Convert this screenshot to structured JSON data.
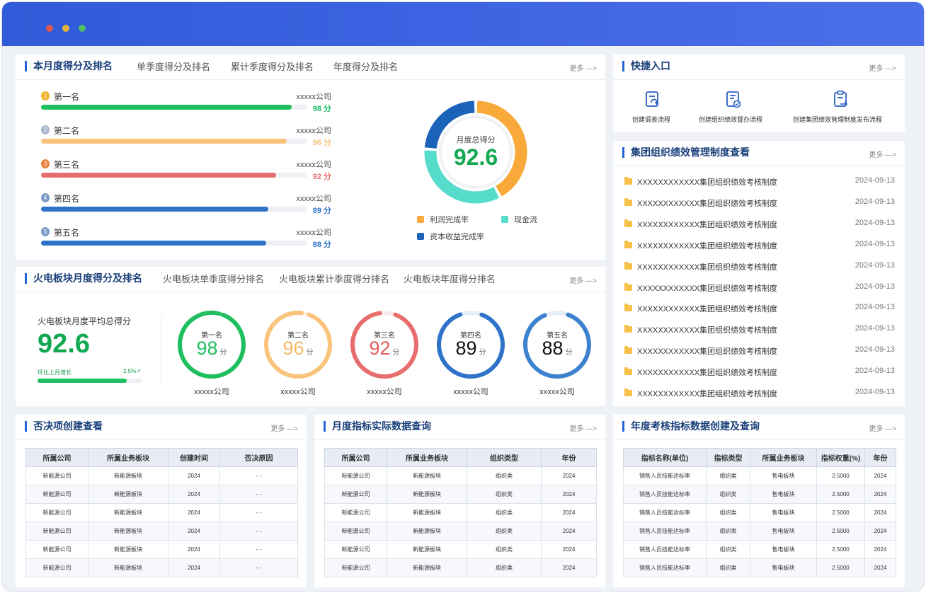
{
  "window": {
    "dots": [
      "#e0594e",
      "#e3b53a",
      "#4fbf6a"
    ]
  },
  "monthly": {
    "title": "本月度得分及排名",
    "tabs": [
      "单季度得分及排名",
      "累计季度得分及排名",
      "年度得分及排名"
    ],
    "more": "更多 —>",
    "ranks": [
      {
        "label": "第一名",
        "company": "xxxxx公司",
        "score": "98 分",
        "value": 98,
        "color": "#1fbf5f",
        "medal_color": "#f2b533"
      },
      {
        "label": "第二名",
        "company": "xxxxx公司",
        "score": "96 分",
        "value": 96,
        "color": "#f9c37b",
        "medal_color": "#a9b7d0"
      },
      {
        "label": "第三名",
        "company": "xxxxx公司",
        "score": "92 分",
        "value": 92,
        "color": "#e86e6e",
        "medal_color": "#e9823f"
      },
      {
        "label": "第四名",
        "company": "xxxxx公司",
        "score": "89 分",
        "value": 89,
        "color": "#2f73c8",
        "medal_color": "#7b9cc7"
      },
      {
        "label": "第五名",
        "company": "xxxxx公司",
        "score": "88 分",
        "value": 88,
        "color": "#2f73c8",
        "medal_color": "#7b9cc7"
      }
    ],
    "donut": {
      "center_label": "月度总得分",
      "center_value": "92.6",
      "legend": [
        {
          "name": "利润完成率",
          "color": "#f8a93a"
        },
        {
          "name": "现金流",
          "color": "#56dccb"
        },
        {
          "name": "资本收益完成率",
          "color": "#1b63b8"
        }
      ]
    }
  },
  "chart_data": {
    "type": "pie",
    "center_label": "月度总得分",
    "center_value": 92.6,
    "slices": [
      {
        "name": "利润完成率",
        "value": 0.42
      },
      {
        "name": "现金流",
        "value": 0.34
      },
      {
        "name": "资本收益完成率",
        "value": 0.24
      }
    ]
  },
  "thermal": {
    "title": "火电板块月度得分及排名",
    "tabs": [
      "火电板块单季度得分排名",
      "火电板块累计季度得分排名",
      "火电板块年度得分排名"
    ],
    "more": "更多 —>",
    "avg_label": "火电板块月度平均总得分",
    "avg_value": "92.6",
    "growth_label": "环比上月增长",
    "growth_value": "2.5%",
    "growth_fraction": 0.85,
    "rings": [
      {
        "label": "第一名",
        "value": "98",
        "unit": "分",
        "company": "xxxxx公司",
        "fraction": 0.98,
        "color": "#1fbf5f",
        "track": "#e6f7ee",
        "text_color": "#1fbf5f"
      },
      {
        "label": "第二名",
        "value": "96",
        "unit": "分",
        "company": "xxxxx公司",
        "fraction": 0.96,
        "color": "#f9c37b",
        "track": "#fdf2e2",
        "text_color": "#f5b965"
      },
      {
        "label": "第三名",
        "value": "92",
        "unit": "分",
        "company": "xxxxx公司",
        "fraction": 0.92,
        "color": "#e86e6e",
        "track": "#fbeaea",
        "text_color": "#e35b5b"
      },
      {
        "label": "第四名",
        "value": "89",
        "unit": "分",
        "company": "xxxxx公司",
        "fraction": 0.89,
        "color": "#2f73c8",
        "track": "#e5eef9",
        "text_color": "#111111"
      },
      {
        "label": "第五名",
        "value": "88",
        "unit": "分",
        "company": "xxxxx公司",
        "fraction": 0.88,
        "color": "#3d82cf",
        "track": "#e5eef9",
        "text_color": "#111111"
      }
    ]
  },
  "quick": {
    "title": "快捷入口",
    "more": "更多 —>",
    "items": [
      {
        "label": "创建调差流程",
        "icon": "refresh-doc-icon"
      },
      {
        "label": "创建组织绩效督办流程",
        "icon": "check-doc-icon"
      },
      {
        "label": "创建集团绩效管理制度发布流程",
        "icon": "publish-doc-icon"
      }
    ]
  },
  "policies": {
    "title": "集团组织绩效管理制度查看",
    "more": "更多 —>",
    "items": [
      {
        "title": "XXXXXXXXXXXX集团组织绩效考核制度",
        "date": "2024-09-13"
      },
      {
        "title": "XXXXXXXXXXXX集团组织绩效考核制度",
        "date": "2024-09-13"
      },
      {
        "title": "XXXXXXXXXXXX集团组织绩效考核制度",
        "date": "2024-09-13"
      },
      {
        "title": "XXXXXXXXXXXX集团组织绩效考核制度",
        "date": "2024-09-13"
      },
      {
        "title": "XXXXXXXXXXXX集团组织绩效考核制度",
        "date": "2024-09-13"
      },
      {
        "title": "XXXXXXXXXXXX集团组织绩效考核制度",
        "date": "2024-09-13"
      },
      {
        "title": "XXXXXXXXXXXX集团组织绩效考核制度",
        "date": "2024-09-13"
      },
      {
        "title": "XXXXXXXXXXXX集团组织绩效考核制度",
        "date": "2024-09-13"
      },
      {
        "title": "XXXXXXXXXXXX集团组织绩效考核制度",
        "date": "2024-09-13"
      },
      {
        "title": "XXXXXXXXXXXX集团组织绩效考核制度",
        "date": "2024-09-13"
      },
      {
        "title": "XXXXXXXXXXXX集团组织绩效考核制度",
        "date": "2024-09-13"
      }
    ]
  },
  "veto": {
    "title": "否决项创建查看",
    "more": "更多 —>",
    "headers": [
      "所属公司",
      "所属业务板块",
      "创建时间",
      "否决原因"
    ],
    "rows": [
      [
        "新能源公司",
        "新能源板块",
        "2024",
        "- -"
      ],
      [
        "新能源公司",
        "新能源板块",
        "2024",
        "- -"
      ],
      [
        "新能源公司",
        "新能源板块",
        "2024",
        "- -"
      ],
      [
        "新能源公司",
        "新能源板块",
        "2024",
        "- -"
      ],
      [
        "新能源公司",
        "新能源板块",
        "2024",
        "- -"
      ],
      [
        "新能源公司",
        "新能源板块",
        "2024",
        "- -"
      ]
    ]
  },
  "monthly_query": {
    "title": "月度指标实际数据查询",
    "more": "更多 —>",
    "headers": [
      "所属公司",
      "所属业务板块",
      "组织类型",
      "年份"
    ],
    "rows": [
      [
        "新能源公司",
        "新能源板块",
        "组织类",
        "2024"
      ],
      [
        "新能源公司",
        "新能源板块",
        "组织类",
        "2024"
      ],
      [
        "新能源公司",
        "新能源板块",
        "组织类",
        "2024"
      ],
      [
        "新能源公司",
        "新能源板块",
        "组织类",
        "2024"
      ],
      [
        "新能源公司",
        "新能源板块",
        "组织类",
        "2024"
      ],
      [
        "新能源公司",
        "新能源板块",
        "组织类",
        "2024"
      ]
    ]
  },
  "annual": {
    "title": "年度考核指标数据创建及查询",
    "more": "更多 —>",
    "headers": [
      "指标名称(单位)",
      "指标类型",
      "所属业务板块",
      "指标权重(%)",
      "年份"
    ],
    "rows": [
      [
        "销售人员技能达标率",
        "组织类",
        "售电板块",
        "2.5000",
        "2024"
      ],
      [
        "销售人员技能达标率",
        "组织类",
        "售电板块",
        "2.5000",
        "2024"
      ],
      [
        "销售人员技能达标率",
        "组织类",
        "售电板块",
        "2.5000",
        "2024"
      ],
      [
        "销售人员技能达标率",
        "组织类",
        "售电板块",
        "2.5000",
        "2024"
      ],
      [
        "销售人员技能达标率",
        "组织类",
        "售电板块",
        "2.5000",
        "2024"
      ],
      [
        "销售人员技能达标率",
        "组织类",
        "售电板块",
        "2.5000",
        "2024"
      ]
    ]
  }
}
